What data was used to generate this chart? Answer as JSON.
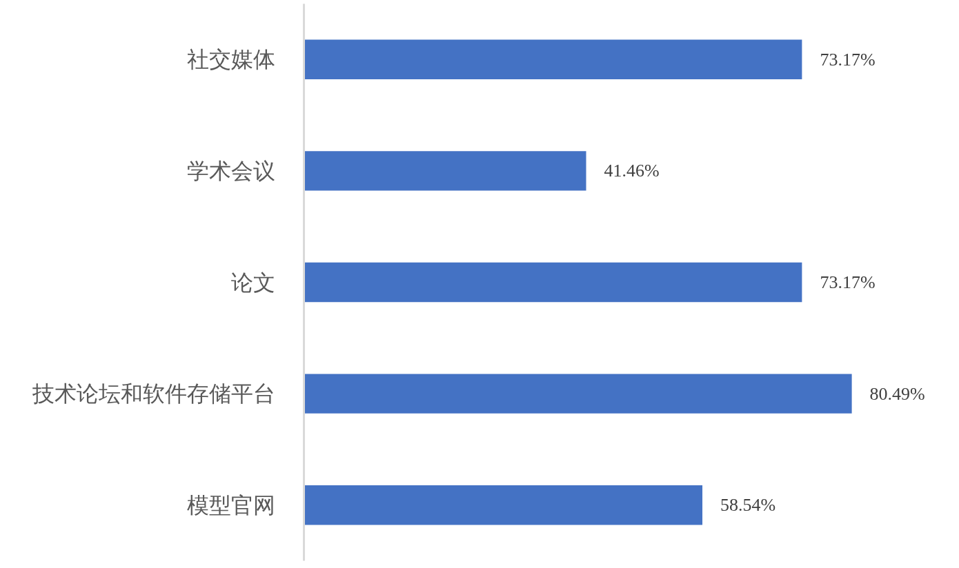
{
  "chart_data": {
    "type": "bar",
    "orientation": "horizontal",
    "categories": [
      "社交媒体",
      "学术会议",
      "论文",
      "技术论坛和软件存储平台",
      "模型官网"
    ],
    "values": [
      73.17,
      41.46,
      73.17,
      80.49,
      58.54
    ],
    "value_labels": [
      "73.17%",
      "41.46%",
      "73.17%",
      "80.49%",
      "58.54%"
    ],
    "color": "#4472c4"
  }
}
